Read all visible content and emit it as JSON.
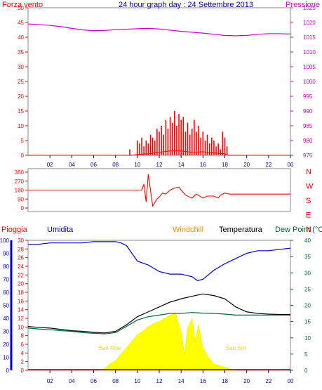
{
  "title": "24 hour graph day : 24 Settembre 2013",
  "colors": {
    "wind": "#ff0000",
    "pressure": "#cc00cc",
    "title": "#00009c",
    "humidity": "#0000cc",
    "windchill": "#ff8800",
    "temperature": "#000000",
    "dewpoint": "#006633",
    "sun": "#ffff00",
    "rain": "#ff0000",
    "frame": "#888888"
  },
  "chart_data": [
    {
      "type": "line",
      "name": "wind-pressure",
      "left_label": "Forza vento",
      "right_label": "Pressione",
      "x_ticks": [
        "02",
        "04",
        "06",
        "08",
        "10",
        "12",
        "14",
        "16",
        "18",
        "20",
        "22",
        "00"
      ],
      "left_ticks": [
        "0",
        "5",
        "10",
        "15",
        "20",
        "25",
        "30",
        "35",
        "40",
        "45",
        "50"
      ],
      "right_ticks": [
        "975",
        "980",
        "985",
        "990",
        "995",
        "1000",
        "1005",
        "1010",
        "1015",
        "1020",
        "1025"
      ],
      "ylim_left": [
        0,
        50
      ],
      "ylim_right": [
        975,
        1025
      ],
      "pressure": {
        "hours": [
          0,
          1,
          2,
          3,
          4,
          5,
          6,
          7,
          8,
          9,
          10,
          11,
          12,
          13,
          14,
          15,
          16,
          17,
          18,
          19,
          20,
          21,
          22,
          23,
          24
        ],
        "values": [
          1019.5,
          1019.3,
          1019,
          1018.6,
          1018,
          1017.5,
          1017.2,
          1017.3,
          1017.6,
          1017.7,
          1017.9,
          1018,
          1017.8,
          1017.4,
          1017,
          1016.7,
          1016.4,
          1016,
          1015.6,
          1015.5,
          1015.6,
          1016,
          1016.2,
          1016.2,
          1016.1
        ]
      },
      "wind_gusts": {
        "hours": [
          9.3,
          10,
          10.2,
          10.4,
          10.6,
          10.8,
          11,
          11.2,
          11.4,
          11.6,
          11.8,
          12,
          12.2,
          12.4,
          12.6,
          12.8,
          13,
          13.2,
          13.4,
          13.6,
          13.8,
          14,
          14.2,
          14.4,
          14.6,
          14.8,
          15,
          15.2,
          15.4,
          15.6,
          15.8,
          16,
          16.2,
          16.4,
          16.6,
          16.8,
          17,
          17.2,
          17.4,
          17.6,
          17.8,
          18,
          18.2
        ],
        "values": [
          2,
          5,
          4,
          6,
          3,
          5,
          4,
          7,
          6,
          5,
          9,
          8,
          10,
          7,
          12,
          9,
          13,
          11,
          15,
          10,
          14,
          12,
          13,
          8,
          11,
          7,
          9,
          12,
          8,
          10,
          6,
          8,
          5,
          7,
          4,
          6,
          5,
          3,
          4,
          2,
          8,
          6,
          3
        ]
      },
      "wind_avg": {
        "hours": [
          0,
          9.5,
          10,
          11,
          12,
          13,
          14,
          15,
          16,
          17,
          18,
          18.3,
          24
        ],
        "values": [
          0,
          0,
          0.3,
          0.5,
          1,
          1.5,
          1.5,
          1,
          1.2,
          0.8,
          0.5,
          0,
          0
        ]
      }
    },
    {
      "type": "line",
      "name": "wind-direction",
      "x_ticks": [],
      "left_ticks": [
        "0",
        "90",
        "180",
        "270",
        "360"
      ],
      "right_labels": [
        "N",
        "W",
        "S",
        "E",
        "N"
      ],
      "ylim": [
        0,
        360
      ],
      "series": {
        "hours": [
          0,
          5,
          9.3,
          9.6,
          10,
          10.4,
          10.6,
          10.8,
          11,
          11.4,
          11.8,
          12,
          12.3,
          12.6,
          13,
          13.4,
          13.8,
          14,
          14.4,
          15,
          15.4,
          16,
          16.4,
          17,
          17.4,
          17.6,
          18,
          18.4,
          19,
          20,
          21,
          22,
          23,
          24
        ],
        "values": [
          180,
          180,
          180,
          180,
          180,
          180,
          240,
          60,
          340,
          20,
          90,
          110,
          150,
          140,
          180,
          200,
          210,
          180,
          130,
          100,
          140,
          100,
          120,
          120,
          100,
          130,
          150,
          140,
          140,
          140,
          140,
          140,
          140,
          140
        ]
      }
    },
    {
      "type": "area",
      "name": "temp-humidity",
      "left_label": "Pioggia",
      "humidity_label": "Umidita",
      "windchill_label": "Windchill",
      "temperature_label": "Temperatura",
      "dewpoint_label": "Dew Point (°C",
      "x_ticks": [
        "02",
        "04",
        "06",
        "08",
        "10",
        "12",
        "14",
        "16",
        "18",
        "20",
        "22",
        "00"
      ],
      "humidity_ticks": [
        "0",
        "10",
        "20",
        "30",
        "40",
        "50",
        "60",
        "70",
        "80",
        "90",
        "100"
      ],
      "rain_ticks": [
        "0",
        "2",
        "4",
        "6",
        "8",
        "10",
        "12",
        "14",
        "16",
        "18",
        "20",
        "22",
        "24",
        "26",
        "28",
        "30"
      ],
      "temp_ticks": [
        "0",
        "5",
        "10",
        "15",
        "20",
        "25",
        "30",
        "35",
        "40"
      ],
      "ylim_temp": [
        0,
        40
      ],
      "ylim_humidity": [
        0,
        100
      ],
      "sun_rise": "Sun Rise",
      "sun_set": "Sun Set",
      "humidity": {
        "hours": [
          0,
          1,
          2,
          3,
          4,
          5,
          6,
          7,
          8,
          8.5,
          9,
          9.5,
          10,
          11,
          12,
          13,
          14,
          15,
          15.5,
          16,
          17,
          18,
          19,
          20,
          21,
          22,
          23,
          24
        ],
        "values": [
          97,
          97,
          98,
          98,
          98,
          98,
          99,
          99,
          99,
          98,
          96,
          90,
          84,
          81,
          76,
          74,
          74,
          72,
          69,
          70,
          77,
          82,
          86,
          90,
          92,
          92,
          93,
          94
        ]
      },
      "temperature": {
        "hours": [
          0,
          1,
          2,
          3,
          4,
          5,
          6,
          7,
          8,
          9,
          10,
          11,
          12,
          13,
          14,
          15,
          16,
          17,
          18,
          19,
          20,
          21,
          22,
          23,
          24
        ],
        "values": [
          13.5,
          13.2,
          13,
          12.6,
          12.2,
          12,
          11.7,
          11.5,
          12,
          14,
          16.5,
          18,
          19.5,
          21,
          22,
          22.8,
          23.5,
          23,
          22,
          19.5,
          18,
          17.5,
          17.3,
          17.2,
          17.2
        ]
      },
      "dewpoint": {
        "hours": [
          0,
          1,
          2,
          3,
          4,
          5,
          6,
          7,
          8,
          9,
          10,
          11,
          12,
          13,
          14,
          15,
          16,
          17,
          18,
          19,
          20,
          21,
          22,
          23,
          24
        ],
        "values": [
          13,
          12.7,
          12.5,
          12.2,
          12,
          11.6,
          11.4,
          11.2,
          11.6,
          13.5,
          15.5,
          16.5,
          17,
          17.5,
          17.5,
          17.8,
          17.6,
          17.5,
          17.3,
          17,
          17,
          17,
          17,
          17,
          17
        ]
      },
      "solar": {
        "hours": [
          6.5,
          7,
          7.5,
          8,
          8.5,
          9,
          9.5,
          10,
          10.5,
          11,
          11.5,
          12,
          12.5,
          13,
          13.5,
          14,
          14.3,
          14.6,
          15,
          15.3,
          15.6,
          16,
          16.5,
          17,
          17.5,
          18,
          18.5,
          19
        ],
        "values": [
          0,
          0.5,
          2,
          3,
          5,
          7,
          9,
          11,
          12,
          13.5,
          14.5,
          15,
          16,
          17,
          17.5,
          12,
          5,
          13,
          16,
          9,
          14,
          7,
          4,
          2,
          1.5,
          1,
          0.3,
          0
        ]
      }
    }
  ]
}
